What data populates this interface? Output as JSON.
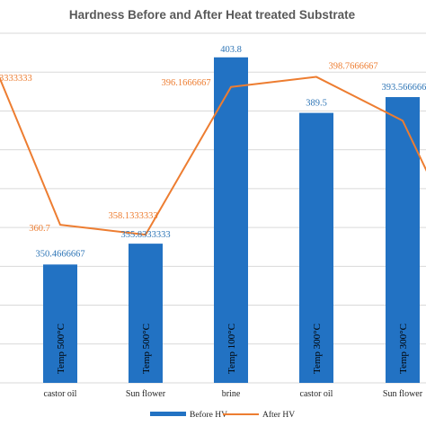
{
  "chart_data": {
    "type": "bar",
    "title": "Hardness Before and After Heat treated Substrate",
    "categories": [
      "castor oil",
      "Sun flower",
      "brine",
      "castor oil",
      "Sun flower"
    ],
    "bar_inner_labels": [
      "Temp 500°C",
      "Temp 500°C",
      "Temp 100°C",
      "Temp 300°C",
      "Temp 300°C"
    ],
    "series": [
      {
        "name": "Before HV",
        "type": "bar",
        "color": "#2272C3",
        "values": [
          350.4666667,
          355.8333333,
          403.8,
          389.5,
          393.5666667
        ],
        "labels": [
          "350.4666667",
          "355.8333333",
          "403.8",
          "389.5",
          "393.5666667"
        ]
      },
      {
        "name": "After HV",
        "type": "line",
        "color": "#ED7D31",
        "values": [
          360.7,
          358.1333333,
          396.1666667,
          398.7666667,
          387.5
        ],
        "labels": [
          "360.7",
          "358.1333333",
          "396.1666667",
          "398.7666667",
          ""
        ]
      }
    ],
    "first_line_label_partial": "3333333",
    "ylim": [
      320,
      410
    ],
    "grid": true,
    "legend_position": "bottom"
  }
}
